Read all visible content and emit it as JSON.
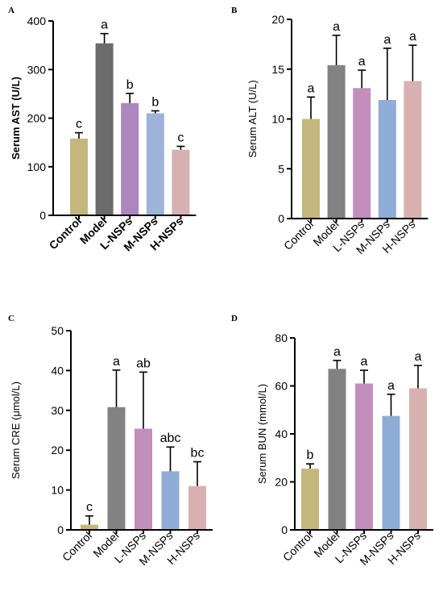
{
  "colors": {
    "control": "#c4b77e",
    "model": "#6b6b6b",
    "l_nsps": "#ad85bf",
    "m_nsps": "#9db3d9",
    "h_nsps": "#d8b0b0",
    "model_light": "#828282",
    "l_nsps_light": "#c28fbd",
    "m_nsps_light": "#8fadd6",
    "h_nsps_light": "#d9b0b0",
    "axis": "#000000"
  },
  "chart_data": [
    {
      "panel": "A",
      "type": "bar",
      "categories": [
        "Control",
        "Model",
        "L-NSPs",
        "M-NSPs",
        "H-NSPs"
      ],
      "values": [
        158,
        354,
        231,
        210,
        135
      ],
      "errors": [
        12,
        20,
        20,
        5,
        7
      ],
      "significance": [
        "c",
        "a",
        "b",
        "b",
        "c"
      ],
      "ylabel": "Serum AST (U/L)",
      "ylim": [
        0,
        400
      ],
      "yticks": [
        0,
        100,
        200,
        300,
        400
      ],
      "colors": [
        "#c4b77e",
        "#6b6b6b",
        "#ad85bf",
        "#9db3d9",
        "#d8b0b0"
      ]
    },
    {
      "panel": "B",
      "type": "bar",
      "categories": [
        "Control",
        "Model",
        "L-NSPs",
        "M-NSPs",
        "H-NSPs"
      ],
      "values": [
        10.0,
        15.4,
        13.1,
        11.9,
        13.8
      ],
      "errors": [
        2.2,
        3.0,
        1.8,
        5.2,
        3.6
      ],
      "significance": [
        "a",
        "a",
        "a",
        "a",
        "a"
      ],
      "ylabel": "Serum ALT (U/L)",
      "ylim": [
        0,
        20
      ],
      "yticks": [
        0,
        5,
        10,
        15,
        20
      ],
      "colors": [
        "#c4b77e",
        "#828282",
        "#c28fbd",
        "#8fadd6",
        "#d9b0b0"
      ]
    },
    {
      "panel": "C",
      "type": "bar",
      "categories": [
        "Control",
        "Model",
        "L-NSPs",
        "M-NSPs",
        "H-NSPs"
      ],
      "values": [
        1.3,
        30.8,
        25.4,
        14.7,
        11.0
      ],
      "errors": [
        2.2,
        9.3,
        14.2,
        6.1,
        6.1
      ],
      "significance": [
        "c",
        "a",
        "ab",
        "abc",
        "bc"
      ],
      "ylabel": "Serum CRE (μmol/L)",
      "ylim": [
        0,
        50
      ],
      "yticks": [
        0,
        10,
        20,
        30,
        40,
        50
      ],
      "colors": [
        "#c4b77e",
        "#828282",
        "#c28fbd",
        "#8fadd6",
        "#d9b0b0"
      ]
    },
    {
      "panel": "D",
      "type": "bar",
      "categories": [
        "Control",
        "Model",
        "L-NSPs",
        "M-NSPs",
        "H-NSPs"
      ],
      "values": [
        25.5,
        67.1,
        61.0,
        47.5,
        59.0
      ],
      "errors": [
        2.0,
        3.5,
        5.5,
        9.0,
        9.5
      ],
      "significance": [
        "b",
        "a",
        "a",
        "a",
        "a"
      ],
      "ylabel": "Serum BUN (mmol/L)",
      "ylim": [
        0,
        80
      ],
      "yticks": [
        0,
        20,
        40,
        60,
        80
      ],
      "colors": [
        "#c4b77e",
        "#828282",
        "#c28fbd",
        "#8fadd6",
        "#d9b0b0"
      ]
    }
  ]
}
